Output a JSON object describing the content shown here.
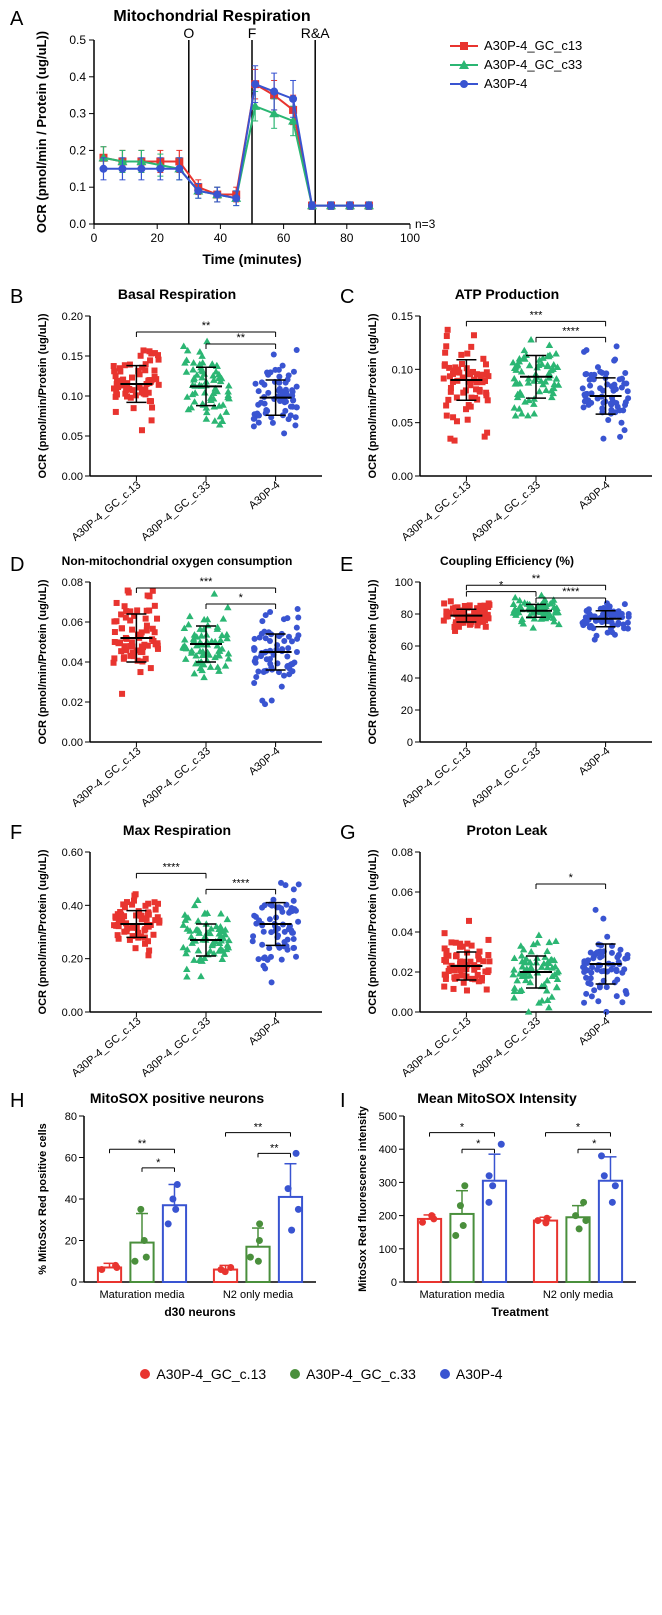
{
  "colors": {
    "c13": "#e8342f",
    "c33": "#2bb673",
    "a30p4": "#3954d1",
    "c33_dark": "#4a8f3c",
    "axis": "#000000",
    "grid": "#cccccc"
  },
  "series_labels": {
    "c13": "A30P-4_GC_c13",
    "c33": "A30P-4_GC_c33",
    "a30p4": "A30P-4"
  },
  "panelA": {
    "label": "A",
    "title": "Mitochondrial Respiration",
    "xlabel": "Time (minutes)",
    "ylabel": "OCR (pmol/min / Protein (ug/uL))",
    "xlim": [
      0,
      100
    ],
    "ylim": [
      0,
      0.5
    ],
    "xtick_step": 20,
    "ytick_step": 0.1,
    "n_label": "n=3",
    "injections": [
      {
        "x": 30,
        "label": "O"
      },
      {
        "x": 50,
        "label": "F"
      },
      {
        "x": 70,
        "label": "R&A"
      }
    ],
    "time": [
      3,
      9,
      15,
      21,
      27,
      33,
      39,
      45,
      51,
      57,
      63,
      69,
      75,
      81,
      87
    ],
    "data": {
      "c13": [
        0.18,
        0.17,
        0.17,
        0.17,
        0.17,
        0.1,
        0.08,
        0.08,
        0.38,
        0.35,
        0.31,
        0.05,
        0.05,
        0.05,
        0.05
      ],
      "c33": [
        0.18,
        0.17,
        0.17,
        0.16,
        0.15,
        0.09,
        0.08,
        0.07,
        0.32,
        0.3,
        0.28,
        0.05,
        0.05,
        0.05,
        0.05
      ],
      "a30p4": [
        0.15,
        0.15,
        0.15,
        0.15,
        0.15,
        0.09,
        0.08,
        0.07,
        0.38,
        0.36,
        0.34,
        0.05,
        0.05,
        0.05,
        0.05
      ]
    },
    "error": {
      "c13": [
        0.03,
        0.03,
        0.03,
        0.03,
        0.03,
        0.02,
        0.02,
        0.02,
        0.04,
        0.04,
        0.04,
        0.01,
        0.01,
        0.01,
        0.01
      ],
      "c33": [
        0.03,
        0.03,
        0.03,
        0.03,
        0.03,
        0.02,
        0.02,
        0.02,
        0.04,
        0.04,
        0.04,
        0.01,
        0.01,
        0.01,
        0.01
      ],
      "a30p4": [
        0.03,
        0.03,
        0.03,
        0.03,
        0.03,
        0.02,
        0.02,
        0.02,
        0.05,
        0.05,
        0.05,
        0.01,
        0.01,
        0.01,
        0.01
      ]
    }
  },
  "scatter_panels": [
    {
      "id": "B",
      "title": "Basal Respiration",
      "ylabel": "OCR (pmol/min/Protein (ug/uL))",
      "ylim": [
        0,
        0.2
      ],
      "ytick_step": 0.05,
      "means": {
        "c13": 0.115,
        "c33": 0.112,
        "a30p4": 0.098
      },
      "sds": {
        "c13": 0.023,
        "c33": 0.024,
        "a30p4": 0.022
      },
      "sig": [
        [
          "c13",
          "a30p4",
          "**",
          0.18
        ],
        [
          "c33",
          "a30p4",
          "**",
          0.165
        ]
      ]
    },
    {
      "id": "C",
      "title": "ATP Production",
      "ylabel": "OCR (pmol/min/Protein (ug/uL))",
      "ylim": [
        0,
        0.15
      ],
      "ytick_step": 0.05,
      "means": {
        "c13": 0.09,
        "c33": 0.093,
        "a30p4": 0.075
      },
      "sds": {
        "c13": 0.019,
        "c33": 0.02,
        "a30p4": 0.017
      },
      "sig": [
        [
          "c13",
          "a30p4",
          "***",
          0.145
        ],
        [
          "c33",
          "a30p4",
          "****",
          0.13
        ]
      ]
    },
    {
      "id": "D",
      "title": "Non-mitochondrial oxygen consumption",
      "ylabel": "OCR (pmol/min/Protein (ug/uL))",
      "ylim": [
        0,
        0.08
      ],
      "ytick_step": 0.02,
      "means": {
        "c13": 0.052,
        "c33": 0.049,
        "a30p4": 0.045
      },
      "sds": {
        "c13": 0.012,
        "c33": 0.009,
        "a30p4": 0.009
      },
      "sig": [
        [
          "c13",
          "a30p4",
          "***",
          0.077
        ],
        [
          "c33",
          "a30p4",
          "*",
          0.069
        ]
      ]
    },
    {
      "id": "E",
      "title": "Coupling Efficiency (%)",
      "ylabel": "OCR (pmol/min/Protein (ug/uL))",
      "ylim": [
        0,
        100
      ],
      "ytick_step": 20,
      "means": {
        "c13": 79,
        "c33": 82,
        "a30p4": 77
      },
      "sds": {
        "c13": 4,
        "c33": 4,
        "a30p4": 5
      },
      "sig": [
        [
          "c13",
          "a30p4",
          "**",
          98
        ],
        [
          "c13",
          "c33",
          "*",
          94
        ],
        [
          "c33",
          "a30p4",
          "****",
          90
        ]
      ]
    },
    {
      "id": "F",
      "title": "Max Respiration",
      "ylabel": "OCR (pmol/min/Protein (ug/uL))",
      "ylim": [
        0,
        0.6
      ],
      "ytick_step": 0.2,
      "means": {
        "c13": 0.33,
        "c33": 0.27,
        "a30p4": 0.33
      },
      "sds": {
        "c13": 0.05,
        "c33": 0.06,
        "a30p4": 0.08
      },
      "sig": [
        [
          "c13",
          "c33",
          "****",
          0.52
        ],
        [
          "c33",
          "a30p4",
          "****",
          0.46
        ]
      ]
    },
    {
      "id": "G",
      "title": "Proton Leak",
      "ylabel": "OCR (pmol/min/Protein (ug/uL))",
      "ylim": [
        0,
        0.08
      ],
      "ytick_step": 0.02,
      "means": {
        "c13": 0.023,
        "c33": 0.02,
        "a30p4": 0.024
      },
      "sds": {
        "c13": 0.007,
        "c33": 0.008,
        "a30p4": 0.01
      },
      "sig": [
        [
          "c33",
          "a30p4",
          "*",
          0.064
        ]
      ]
    }
  ],
  "scatter_xlabels": [
    "A30P-4_GC_c.13",
    "A30P-4_GC_c.33",
    "A30P-4"
  ],
  "panelH": {
    "label": "H",
    "title": "MitoSOX positive neurons",
    "ylabel": "% MitoSox Red positive cells",
    "xlabel": "d30 neurons",
    "ylim": [
      0,
      80
    ],
    "ytick_step": 20,
    "groups": [
      "Maturation media",
      "N2 only media"
    ],
    "bars": {
      "Maturation media": {
        "c13": [
          7,
          2
        ],
        "c33": [
          19,
          14
        ],
        "a30p4": [
          37,
          10
        ]
      },
      "N2 only media": {
        "c13": [
          6,
          2
        ],
        "c33": [
          17,
          9
        ],
        "a30p4": [
          41,
          16
        ]
      }
    },
    "points": {
      "Maturation media": {
        "c13": [
          6,
          7,
          8
        ],
        "c33": [
          10,
          12,
          20,
          35
        ],
        "a30p4": [
          28,
          35,
          40,
          47
        ]
      },
      "N2 only media": {
        "c13": [
          5,
          6,
          7
        ],
        "c33": [
          10,
          12,
          20,
          28
        ],
        "a30p4": [
          25,
          35,
          45,
          62
        ]
      }
    },
    "sig": {
      "Maturation media": [
        [
          "c13",
          "a30p4",
          "**",
          64
        ],
        [
          "c33",
          "a30p4",
          "*",
          55
        ]
      ],
      "N2 only media": [
        [
          "c13",
          "a30p4",
          "**",
          72
        ],
        [
          "c33",
          "a30p4",
          "**",
          62
        ]
      ]
    }
  },
  "panelI": {
    "label": "I",
    "title": "Mean MitoSOX Intensity",
    "ylabel": "MitoSox Red fluorescence intensity",
    "xlabel": "Treatment",
    "ylim": [
      0,
      500
    ],
    "ytick_step": 100,
    "groups": [
      "Maturation media",
      "N2 only media"
    ],
    "bars": {
      "Maturation media": {
        "c13": [
          190,
          12
        ],
        "c33": [
          205,
          70
        ],
        "a30p4": [
          305,
          80
        ]
      },
      "N2 only media": {
        "c13": [
          185,
          10
        ],
        "c33": [
          195,
          35
        ],
        "a30p4": [
          305,
          72
        ]
      }
    },
    "points": {
      "Maturation media": {
        "c13": [
          180,
          190,
          200
        ],
        "c33": [
          140,
          170,
          230,
          290
        ],
        "a30p4": [
          240,
          290,
          320,
          415
        ]
      },
      "N2 only media": {
        "c13": [
          178,
          185,
          192
        ],
        "c33": [
          160,
          185,
          200,
          240
        ],
        "a30p4": [
          240,
          290,
          320,
          380
        ]
      }
    },
    "sig": {
      "Maturation media": [
        [
          "c13",
          "a30p4",
          "*",
          450
        ],
        [
          "c33",
          "a30p4",
          "*",
          400
        ]
      ],
      "N2 only media": [
        [
          "c13",
          "a30p4",
          "*",
          450
        ],
        [
          "c33",
          "a30p4",
          "*",
          400
        ]
      ]
    }
  },
  "footer_legend": [
    {
      "key": "c13",
      "label": "A30P-4_GC_c.13"
    },
    {
      "key": "c33",
      "label": "A30P-4_GC_c.33"
    },
    {
      "key": "a30p4",
      "label": "A30P-4"
    }
  ]
}
